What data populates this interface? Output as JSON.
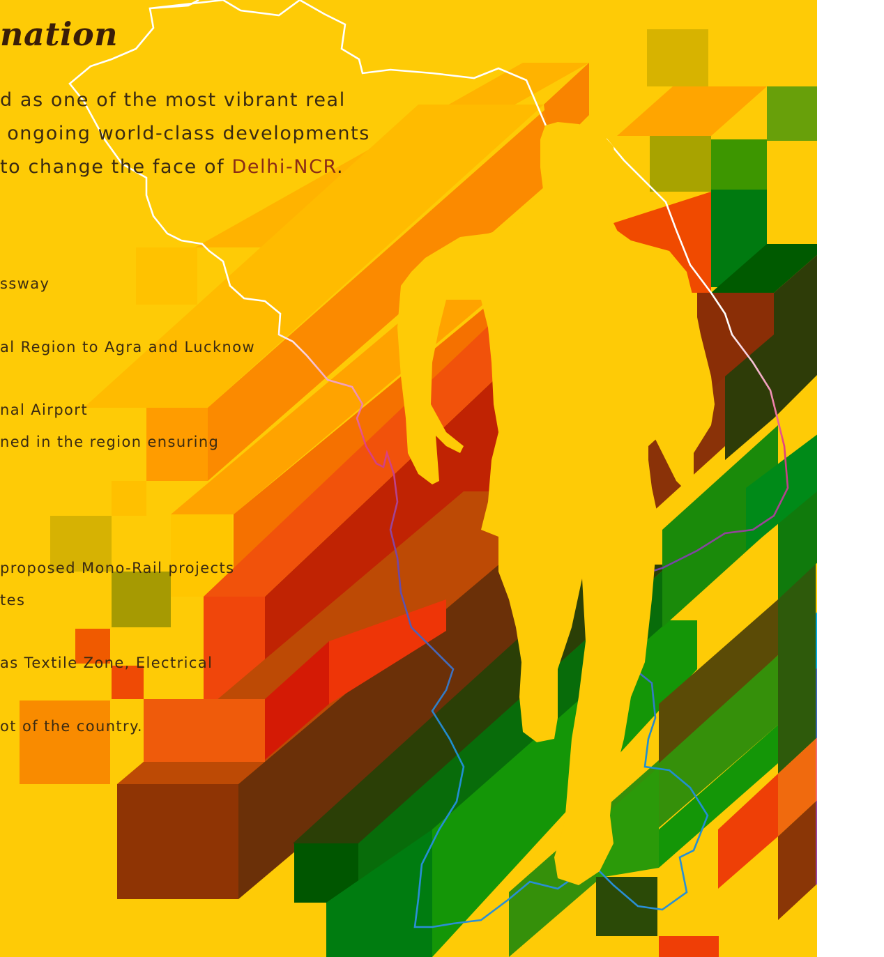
{
  "heading": "nation",
  "intro": {
    "line1": "d as one of the most vibrant real",
    "line2": "ongoing world-class developments",
    "line3_pre": " to change the face of ",
    "line3_highlight": "Delhi-NCR",
    "line3_post": "."
  },
  "points": [
    "ssway",
    "al Region to Agra and Lucknow",
    "nal Airport",
    "ned in the region ensuring",
    "proposed Mono-Rail projects",
    "tes",
    " as Textile Zone, Electrical",
    "ot of the country."
  ],
  "colors": {
    "background": "#fecb06",
    "text": "#3a2a12",
    "highlight": "#8a2c16",
    "silhouette": "#fecb06"
  },
  "graphics": {
    "map": "india-map-outline",
    "figure": "walking-man-silhouette",
    "pattern": "isometric-colored-bars"
  }
}
